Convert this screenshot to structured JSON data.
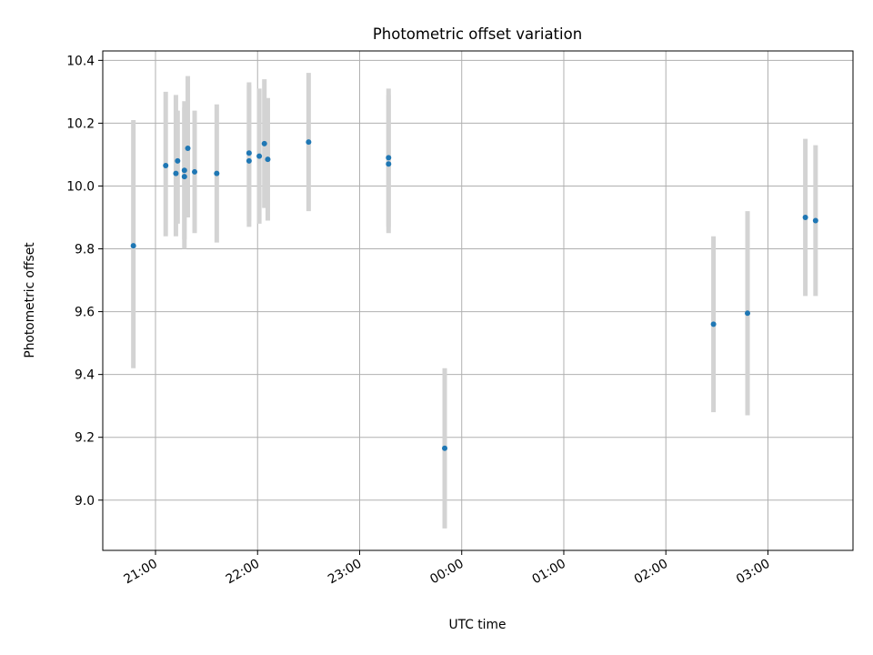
{
  "chart_data": {
    "type": "scatter",
    "title": "Photometric offset variation",
    "xlabel": "UTC time",
    "ylabel": "Photometric offset",
    "grid": true,
    "xlim": [
      "20:29",
      "03:50"
    ],
    "ylim": [
      8.84,
      10.43
    ],
    "x_ticks": [
      "21:00",
      "22:00",
      "23:00",
      "00:00",
      "01:00",
      "02:00",
      "03:00"
    ],
    "y_ticks": [
      "9.0",
      "9.2",
      "9.4",
      "9.6",
      "9.8",
      "10.0",
      "10.2",
      "10.4"
    ],
    "colors": {
      "marker": "#1f77b4",
      "error_bar": "#d3d3d3",
      "grid": "#b0b0b0"
    },
    "points": [
      {
        "x": "20:47",
        "y": 9.81,
        "y_low": 9.42,
        "y_high": 10.21
      },
      {
        "x": "21:06",
        "y": 10.065,
        "y_low": 9.84,
        "y_high": 10.3
      },
      {
        "x": "21:12",
        "y": 10.04,
        "y_low": 9.84,
        "y_high": 10.29
      },
      {
        "x": "21:13",
        "y": 10.08,
        "y_low": 9.88,
        "y_high": 10.24
      },
      {
        "x": "21:17",
        "y": 10.03,
        "y_low": 9.8,
        "y_high": 10.27
      },
      {
        "x": "21:17",
        "y": 10.05,
        "y_low": 9.83,
        "y_high": 10.25
      },
      {
        "x": "21:19",
        "y": 10.12,
        "y_low": 9.9,
        "y_high": 10.35
      },
      {
        "x": "21:23",
        "y": 10.045,
        "y_low": 9.85,
        "y_high": 10.24
      },
      {
        "x": "21:36",
        "y": 10.04,
        "y_low": 9.82,
        "y_high": 10.26
      },
      {
        "x": "21:55",
        "y": 10.105,
        "y_low": 9.87,
        "y_high": 10.33
      },
      {
        "x": "21:55",
        "y": 10.08,
        "y_low": 9.89,
        "y_high": 10.32
      },
      {
        "x": "22:01",
        "y": 10.095,
        "y_low": 9.88,
        "y_high": 10.31
      },
      {
        "x": "22:04",
        "y": 10.135,
        "y_low": 9.93,
        "y_high": 10.34
      },
      {
        "x": "22:06",
        "y": 10.085,
        "y_low": 9.89,
        "y_high": 10.28
      },
      {
        "x": "22:30",
        "y": 10.14,
        "y_low": 9.92,
        "y_high": 10.36
      },
      {
        "x": "23:17",
        "y": 10.09,
        "y_low": 9.87,
        "y_high": 10.31
      },
      {
        "x": "23:17",
        "y": 10.07,
        "y_low": 9.85,
        "y_high": 10.29
      },
      {
        "x": "23:50",
        "y": 9.165,
        "y_low": 8.91,
        "y_high": 9.42
      },
      {
        "x": "02:28",
        "y": 9.56,
        "y_low": 9.28,
        "y_high": 9.84
      },
      {
        "x": "02:48",
        "y": 9.595,
        "y_low": 9.27,
        "y_high": 9.92
      },
      {
        "x": "03:22",
        "y": 9.9,
        "y_low": 9.65,
        "y_high": 10.15
      },
      {
        "x": "03:28",
        "y": 9.89,
        "y_low": 9.65,
        "y_high": 10.13
      }
    ]
  }
}
